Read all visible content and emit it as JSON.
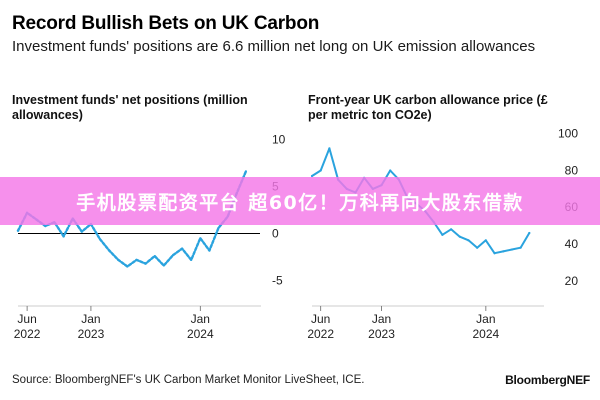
{
  "header": {
    "title": "Record Bullish Bets on UK Carbon",
    "subtitle": "Investment funds' positions are 6.6 million net long on UK emission allowances"
  },
  "banner": {
    "text": "手机股票配资平台 超60亿！万科再向大股东借款"
  },
  "footer": {
    "source": "Source: BloombergNEF's UK Carbon Market Monitor LiveSheet, ICE.",
    "brand": "BloombergNEF"
  },
  "colors": {
    "line": "#2aa3de",
    "zero": "#000000",
    "text": "#222222"
  },
  "chart_data": [
    {
      "type": "line",
      "title": "Investment funds' net positions (million allowances)",
      "ylim": [
        -6,
        11
      ],
      "yticks": [
        10,
        5,
        0,
        -5
      ],
      "ytick_labels": [
        "10",
        "5",
        "0",
        "-5"
      ],
      "xticks": [
        {
          "x": "2022-06",
          "label": "Jun",
          "sub": "2022"
        },
        {
          "x": "2023-01",
          "label": "Jan",
          "sub": "2023"
        },
        {
          "x": "2024-01",
          "label": "Jan",
          "sub": "2024"
        }
      ],
      "x_range": [
        "2022-05",
        "2024-07"
      ],
      "zero_line": true,
      "series": [
        {
          "style": "dotted",
          "x": [
            "2022-05",
            "2022-06",
            "2022-07",
            "2022-08",
            "2022-09",
            "2022-10",
            "2022-11",
            "2022-12",
            "2023-01",
            "2023-02",
            "2023-03",
            "2023-04",
            "2023-05",
            "2023-06",
            "2023-07",
            "2023-08",
            "2023-09",
            "2023-10",
            "2023-11",
            "2023-12",
            "2024-01",
            "2024-02",
            "2024-03",
            "2024-04",
            "2024-05",
            "2024-06"
          ],
          "values": [
            0.3,
            2.2,
            1.5,
            0.8,
            1.2,
            -0.3,
            1.6,
            0.2,
            1.0,
            -0.6,
            -1.8,
            -2.8,
            -3.5,
            -2.8,
            -3.2,
            -2.4,
            -3.4,
            -2.3,
            -1.6,
            -2.8,
            -0.5,
            -1.8,
            0.6,
            1.8,
            4.3,
            6.6
          ]
        }
      ]
    },
    {
      "type": "line",
      "title": "Front-year UK carbon allowance price (£ per metric ton CO2e)",
      "ylim": [
        15,
        102
      ],
      "yticks": [
        100,
        80,
        60,
        40,
        20
      ],
      "ytick_labels": [
        "100",
        "80",
        "60",
        "40",
        "20"
      ],
      "xticks": [
        {
          "x": "2022-06",
          "label": "Jun",
          "sub": "2022"
        },
        {
          "x": "2023-01",
          "label": "Jan",
          "sub": "2023"
        },
        {
          "x": "2024-01",
          "label": "Jan",
          "sub": "2024"
        }
      ],
      "x_range": [
        "2022-05",
        "2024-07"
      ],
      "zero_line": false,
      "series": [
        {
          "style": "solid",
          "x": [
            "2022-05",
            "2022-06",
            "2022-07",
            "2022-08",
            "2022-09",
            "2022-10",
            "2022-11",
            "2022-12",
            "2023-01",
            "2023-02",
            "2023-03",
            "2023-04",
            "2023-05",
            "2023-06",
            "2023-07",
            "2023-08",
            "2023-09",
            "2023-10",
            "2023-11",
            "2023-12",
            "2024-01",
            "2024-02",
            "2024-03",
            "2024-04",
            "2024-05",
            "2024-06"
          ],
          "values": [
            77,
            80,
            92,
            75,
            70,
            68,
            76,
            70,
            72,
            80,
            75,
            65,
            62,
            58,
            52,
            45,
            48,
            44,
            42,
            38,
            42,
            35,
            36,
            37,
            38,
            46
          ]
        }
      ]
    }
  ]
}
